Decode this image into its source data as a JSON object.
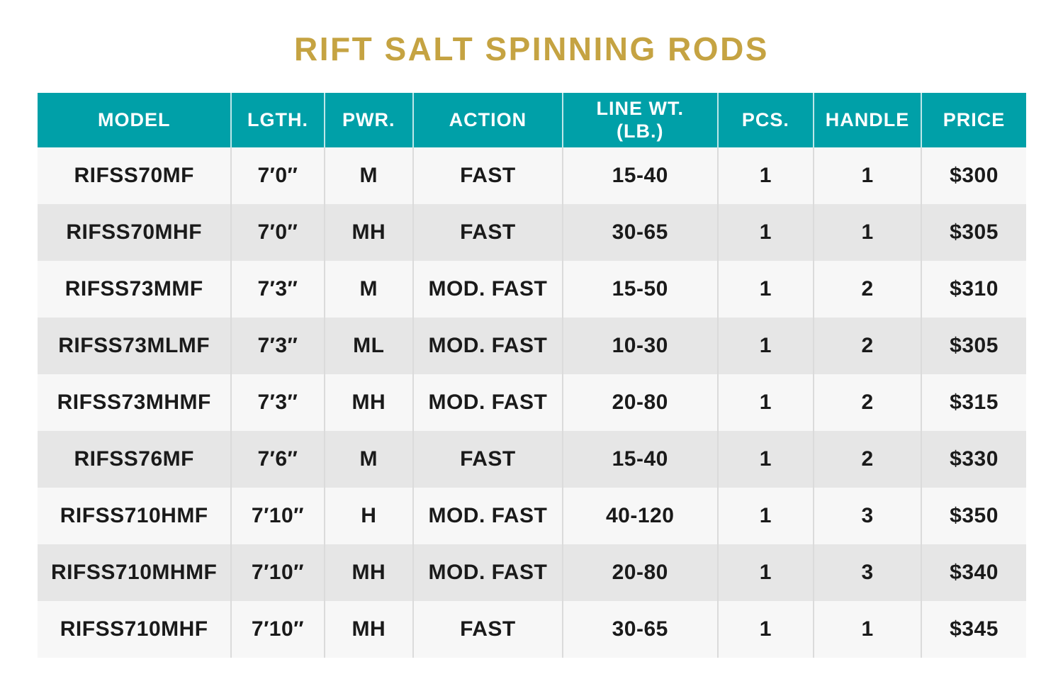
{
  "page": {
    "title": "RIFT SALT SPINNING RODS"
  },
  "colors": {
    "header_bg": "#00A0A8",
    "title_gold": "#C5A342",
    "row_light": "#F7F7F7",
    "row_dark": "#E6E6E6",
    "body_text": "#1A1A1A",
    "divider_body": "#DBDBDB"
  },
  "table": {
    "columns": [
      "MODEL",
      "LGTH.",
      "PWR.",
      "ACTION",
      "LINE WT.\n(LB.)",
      "PCS.",
      "HANDLE",
      "PRICE"
    ],
    "rows": [
      [
        "RIFSS70MF",
        "7′0″",
        "M",
        "FAST",
        "15-40",
        "1",
        "1",
        "$300"
      ],
      [
        "RIFSS70MHF",
        "7′0″",
        "MH",
        "FAST",
        "30-65",
        "1",
        "1",
        "$305"
      ],
      [
        "RIFSS73MMF",
        "7′3″",
        "M",
        "MOD. FAST",
        "15-50",
        "1",
        "2",
        "$310"
      ],
      [
        "RIFSS73MLMF",
        "7′3″",
        "ML",
        "MOD. FAST",
        "10-30",
        "1",
        "2",
        "$305"
      ],
      [
        "RIFSS73MHMF",
        "7′3″",
        "MH",
        "MOD. FAST",
        "20-80",
        "1",
        "2",
        "$315"
      ],
      [
        "RIFSS76MF",
        "7′6″",
        "M",
        "FAST",
        "15-40",
        "1",
        "2",
        "$330"
      ],
      [
        "RIFSS710HMF",
        "7′10″",
        "H",
        "MOD. FAST",
        "40-120",
        "1",
        "3",
        "$350"
      ],
      [
        "RIFSS710MHMF",
        "7′10″",
        "MH",
        "MOD. FAST",
        "20-80",
        "1",
        "3",
        "$340"
      ],
      [
        "RIFSS710MHF",
        "7′10″",
        "MH",
        "FAST",
        "30-65",
        "1",
        "1",
        "$345"
      ]
    ]
  },
  "chart_data": {
    "type": "table",
    "title": "RIFT SALT SPINNING RODS",
    "columns": [
      "MODEL",
      "LGTH.",
      "PWR.",
      "ACTION",
      "LINE WT. (LB.)",
      "PCS.",
      "HANDLE",
      "PRICE"
    ],
    "rows": [
      [
        "RIFSS70MF",
        "7′0″",
        "M",
        "FAST",
        "15-40",
        1,
        1,
        "$300"
      ],
      [
        "RIFSS70MHF",
        "7′0″",
        "MH",
        "FAST",
        "30-65",
        1,
        1,
        "$305"
      ],
      [
        "RIFSS73MMF",
        "7′3″",
        "M",
        "MOD. FAST",
        "15-50",
        1,
        2,
        "$310"
      ],
      [
        "RIFSS73MLMF",
        "7′3″",
        "ML",
        "MOD. FAST",
        "10-30",
        1,
        2,
        "$305"
      ],
      [
        "RIFSS73MHMF",
        "7′3″",
        "MH",
        "MOD. FAST",
        "20-80",
        1,
        2,
        "$315"
      ],
      [
        "RIFSS76MF",
        "7′6″",
        "M",
        "FAST",
        "15-40",
        1,
        2,
        "$330"
      ],
      [
        "RIFSS710HMF",
        "7′10″",
        "H",
        "MOD. FAST",
        "40-120",
        1,
        3,
        "$350"
      ],
      [
        "RIFSS710MHMF",
        "7′10″",
        "MH",
        "MOD. FAST",
        "20-80",
        1,
        3,
        "$340"
      ],
      [
        "RIFSS710MHF",
        "7′10″",
        "MH",
        "FAST",
        "30-65",
        1,
        1,
        "$345"
      ]
    ]
  }
}
